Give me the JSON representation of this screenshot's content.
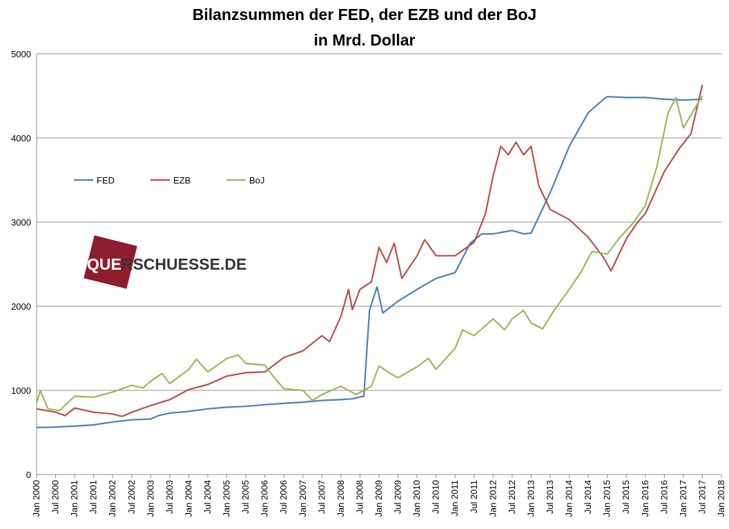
{
  "chart_data": {
    "type": "line",
    "title": "Bilanzsummen der FED, der EZB und der BoJ",
    "subtitle": "in Mrd. Dollar",
    "xlabel": "",
    "ylabel": "",
    "ylim": [
      0,
      5000
    ],
    "yticks": [
      0,
      1000,
      2000,
      3000,
      4000,
      5000
    ],
    "x_tick_labels": [
      "Jan 2000",
      "Jul 2000",
      "Jan 2001",
      "Jul 2001",
      "Jan 2002",
      "Jul 2002",
      "Jan 2003",
      "Jul 2003",
      "Jan 2004",
      "Jul 2004",
      "Jan 2005",
      "Jul 2005",
      "Jan 2006",
      "Jul 2006",
      "Jan 2007",
      "Jul 2007",
      "Jan 2008",
      "Jul 2008",
      "Jan 2009",
      "Jul 2009",
      "Jan 2010",
      "Jul 2010",
      "Jan 2011",
      "Jul 2011",
      "Jan 2012",
      "Jul 2012",
      "Jan 2013",
      "Jul 2013",
      "Jan 2014",
      "Jul 2014",
      "Jan 2015",
      "Jul 2015",
      "Jan 2016",
      "Jul 2016",
      "Jan 2017",
      "Jul 2017",
      "Jan 2018"
    ],
    "grid": "horizontal",
    "legend_position": "left",
    "watermark": "QUERSCHUESSE.DE",
    "series": [
      {
        "name": "FED",
        "color": "#4a7ebb",
        "points": [
          [
            2000.0,
            560
          ],
          [
            2000.25,
            560
          ],
          [
            2000.5,
            565
          ],
          [
            2001.0,
            575
          ],
          [
            2001.5,
            590
          ],
          [
            2002.0,
            625
          ],
          [
            2002.5,
            650
          ],
          [
            2003.0,
            660
          ],
          [
            2003.2,
            700
          ],
          [
            2003.5,
            730
          ],
          [
            2004.0,
            750
          ],
          [
            2004.5,
            780
          ],
          [
            2005.0,
            800
          ],
          [
            2005.5,
            810
          ],
          [
            2006.0,
            830
          ],
          [
            2006.5,
            845
          ],
          [
            2007.0,
            860
          ],
          [
            2007.5,
            880
          ],
          [
            2008.0,
            890
          ],
          [
            2008.3,
            900
          ],
          [
            2008.6,
            930
          ],
          [
            2008.75,
            1950
          ],
          [
            2008.95,
            2230
          ],
          [
            2009.1,
            1920
          ],
          [
            2009.5,
            2060
          ],
          [
            2010.0,
            2200
          ],
          [
            2010.5,
            2330
          ],
          [
            2011.0,
            2400
          ],
          [
            2011.4,
            2750
          ],
          [
            2011.7,
            2860
          ],
          [
            2012.0,
            2860
          ],
          [
            2012.5,
            2900
          ],
          [
            2012.8,
            2860
          ],
          [
            2013.0,
            2870
          ],
          [
            2013.5,
            3350
          ],
          [
            2014.0,
            3900
          ],
          [
            2014.5,
            4300
          ],
          [
            2014.9,
            4460
          ],
          [
            2015.0,
            4490
          ],
          [
            2015.5,
            4480
          ],
          [
            2016.0,
            4480
          ],
          [
            2016.5,
            4460
          ],
          [
            2017.0,
            4450
          ],
          [
            2017.5,
            4460
          ]
        ]
      },
      {
        "name": "EZB",
        "color": "#be4b48",
        "points": [
          [
            2000.0,
            780
          ],
          [
            2000.5,
            740
          ],
          [
            2000.75,
            700
          ],
          [
            2001.0,
            790
          ],
          [
            2001.5,
            740
          ],
          [
            2002.0,
            720
          ],
          [
            2002.25,
            690
          ],
          [
            2002.5,
            740
          ],
          [
            2003.0,
            820
          ],
          [
            2003.5,
            890
          ],
          [
            2004.0,
            1010
          ],
          [
            2004.5,
            1070
          ],
          [
            2005.0,
            1170
          ],
          [
            2005.5,
            1210
          ],
          [
            2006.0,
            1220
          ],
          [
            2006.5,
            1390
          ],
          [
            2007.0,
            1470
          ],
          [
            2007.5,
            1650
          ],
          [
            2007.7,
            1580
          ],
          [
            2008.0,
            1880
          ],
          [
            2008.2,
            2200
          ],
          [
            2008.3,
            1960
          ],
          [
            2008.5,
            2200
          ],
          [
            2008.8,
            2290
          ],
          [
            2009.0,
            2700
          ],
          [
            2009.2,
            2520
          ],
          [
            2009.4,
            2750
          ],
          [
            2009.6,
            2330
          ],
          [
            2010.0,
            2600
          ],
          [
            2010.2,
            2790
          ],
          [
            2010.5,
            2600
          ],
          [
            2011.0,
            2600
          ],
          [
            2011.5,
            2760
          ],
          [
            2011.8,
            3100
          ],
          [
            2012.0,
            3550
          ],
          [
            2012.2,
            3900
          ],
          [
            2012.4,
            3800
          ],
          [
            2012.6,
            3950
          ],
          [
            2012.8,
            3800
          ],
          [
            2013.0,
            3900
          ],
          [
            2013.2,
            3430
          ],
          [
            2013.5,
            3150
          ],
          [
            2014.0,
            3030
          ],
          [
            2014.5,
            2820
          ],
          [
            2014.9,
            2580
          ],
          [
            2015.1,
            2420
          ],
          [
            2015.5,
            2800
          ],
          [
            2015.8,
            3000
          ],
          [
            2016.0,
            3100
          ],
          [
            2016.5,
            3600
          ],
          [
            2016.9,
            3880
          ],
          [
            2017.2,
            4050
          ],
          [
            2017.5,
            4630
          ]
        ]
      },
      {
        "name": "BoJ",
        "color": "#98b954",
        "points": [
          [
            2000.0,
            850
          ],
          [
            2000.1,
            1000
          ],
          [
            2000.3,
            780
          ],
          [
            2000.6,
            760
          ],
          [
            2001.0,
            930
          ],
          [
            2001.5,
            920
          ],
          [
            2002.0,
            980
          ],
          [
            2002.5,
            1060
          ],
          [
            2002.8,
            1030
          ],
          [
            2003.0,
            1110
          ],
          [
            2003.3,
            1200
          ],
          [
            2003.5,
            1080
          ],
          [
            2004.0,
            1250
          ],
          [
            2004.2,
            1370
          ],
          [
            2004.5,
            1220
          ],
          [
            2005.0,
            1380
          ],
          [
            2005.3,
            1420
          ],
          [
            2005.5,
            1320
          ],
          [
            2006.0,
            1300
          ],
          [
            2006.25,
            1150
          ],
          [
            2006.5,
            1020
          ],
          [
            2007.0,
            1000
          ],
          [
            2007.25,
            880
          ],
          [
            2007.5,
            950
          ],
          [
            2008.0,
            1050
          ],
          [
            2008.4,
            950
          ],
          [
            2008.8,
            1050
          ],
          [
            2009.0,
            1290
          ],
          [
            2009.3,
            1200
          ],
          [
            2009.5,
            1150
          ],
          [
            2010.0,
            1280
          ],
          [
            2010.3,
            1380
          ],
          [
            2010.5,
            1250
          ],
          [
            2011.0,
            1500
          ],
          [
            2011.2,
            1720
          ],
          [
            2011.5,
            1650
          ],
          [
            2012.0,
            1850
          ],
          [
            2012.3,
            1720
          ],
          [
            2012.5,
            1850
          ],
          [
            2012.8,
            1950
          ],
          [
            2013.0,
            1800
          ],
          [
            2013.3,
            1730
          ],
          [
            2013.6,
            1950
          ],
          [
            2014.0,
            2200
          ],
          [
            2014.3,
            2400
          ],
          [
            2014.6,
            2650
          ],
          [
            2015.0,
            2620
          ],
          [
            2015.3,
            2800
          ],
          [
            2015.7,
            3000
          ],
          [
            2016.0,
            3200
          ],
          [
            2016.3,
            3650
          ],
          [
            2016.6,
            4300
          ],
          [
            2016.8,
            4480
          ],
          [
            2017.0,
            4120
          ],
          [
            2017.3,
            4350
          ],
          [
            2017.5,
            4500
          ]
        ]
      }
    ]
  }
}
